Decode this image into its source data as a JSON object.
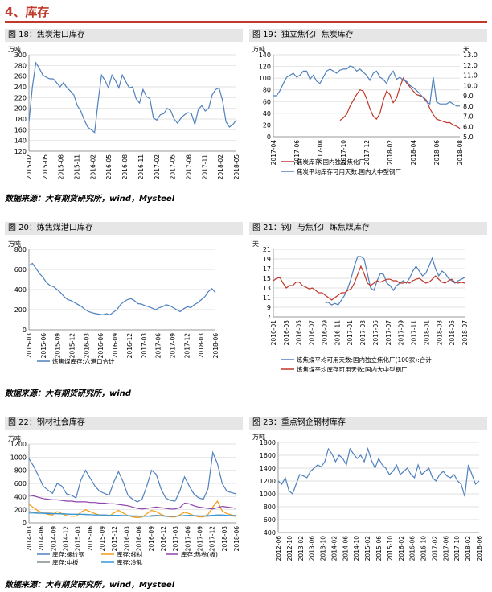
{
  "section": {
    "title": "4、库存"
  },
  "figures": [
    {
      "caption": "图 18：焦炭港口库存"
    },
    {
      "caption": "图 19：独立焦化厂焦炭库存"
    },
    {
      "caption": "图 20：炼焦煤港口库存"
    },
    {
      "caption": "图 21：钢厂与焦化厂炼焦煤库存"
    },
    {
      "caption": "图 22：钢材社会库存"
    },
    {
      "caption": "图 23：重点钢企钢材库存"
    }
  ],
  "sources": [
    "数据来源：大有期货研究所，wind，Mysteel",
    "数据来源：大有期货研究所，wind",
    "数据来源：大有期货研究所，wind，Mysteel"
  ],
  "chart_data": [
    {
      "type": "line",
      "ylabel": "万吨",
      "ylim": [
        120,
        300
      ],
      "yticks": [
        120,
        140,
        160,
        180,
        200,
        220,
        240,
        260,
        280,
        300
      ],
      "x_tick_labels": [
        "2015-02",
        "2015-05",
        "2015-08",
        "2015-11",
        "2016-02",
        "2016-05",
        "2016-08",
        "2016-11",
        "2017-02",
        "2017-05",
        "2017-08",
        "2017-11",
        "2018-02",
        "2018-05"
      ],
      "grid": "horizontal",
      "series": [
        {
          "name": "",
          "color": "#4f81bd",
          "values": [
            175,
            240,
            285,
            275,
            262,
            258,
            255,
            255,
            248,
            240,
            248,
            238,
            232,
            225,
            205,
            195,
            178,
            165,
            160,
            155,
            212,
            262,
            252,
            238,
            262,
            252,
            238,
            262,
            250,
            238,
            240,
            218,
            210,
            235,
            222,
            218,
            182,
            178,
            188,
            190,
            200,
            196,
            180,
            172,
            182,
            188,
            192,
            190,
            170,
            198,
            205,
            195,
            200,
            225,
            235,
            238,
            215,
            175,
            165,
            170,
            178
          ]
        }
      ]
    },
    {
      "type": "line",
      "ylabel": "万吨",
      "ylabel_right": "天",
      "ylim": [
        0,
        140
      ],
      "yticks": [
        0,
        20,
        40,
        60,
        80,
        100,
        120,
        140
      ],
      "ylim_right": [
        5.0,
        13.0
      ],
      "yticks_right": [
        "5.0",
        "6.0",
        "7.0",
        "8.0",
        "9.0",
        "10.0",
        "11.0",
        "12.0",
        "13.0"
      ],
      "x_tick_labels": [
        "2017-04",
        "2017-06",
        "2017-08",
        "2017-10",
        "2017-12",
        "2018-02",
        "2018-04",
        "2018-06",
        "2018-08"
      ],
      "legend": [
        "焦炭库存:国内独立焦化厂",
        "焦炭平均库存可用天数:国内大中型钢厂"
      ],
      "series": [
        {
          "name": "焦炭库存:国内独立焦化厂",
          "color": "#c0392b",
          "axis": "left",
          "values": [
            null,
            null,
            null,
            null,
            null,
            null,
            null,
            null,
            null,
            null,
            null,
            null,
            null,
            null,
            null,
            null,
            null,
            null,
            null,
            null,
            28,
            32,
            38,
            52,
            62,
            72,
            80,
            78,
            65,
            48,
            35,
            30,
            40,
            62,
            78,
            72,
            58,
            66,
            85,
            100,
            92,
            85,
            78,
            72,
            70,
            68,
            62,
            48,
            38,
            30,
            28,
            26,
            24,
            24,
            20,
            18,
            14
          ]
        },
        {
          "name": "焦炭平均库存可用天数:国内大中型钢厂",
          "color": "#4f81bd",
          "axis": "right",
          "values": [
            9.0,
            9.0,
            9.5,
            10.2,
            10.8,
            11.0,
            11.2,
            10.8,
            11.0,
            11.4,
            11.4,
            10.6,
            11.0,
            10.4,
            10.2,
            10.8,
            11.4,
            11.6,
            11.4,
            11.2,
            11.5,
            11.6,
            11.6,
            11.9,
            11.8,
            11.4,
            11.6,
            11.3,
            11.0,
            10.5,
            11.2,
            11.4,
            10.8,
            10.6,
            10.2,
            11.0,
            11.4,
            10.6,
            10.8,
            10.5,
            10.4,
            10.0,
            9.8,
            9.5,
            9.2,
            8.8,
            8.4,
            8.2,
            10.8,
            8.4,
            8.2,
            8.2,
            8.2,
            8.4,
            8.2,
            8.0,
            8.0
          ]
        }
      ]
    },
    {
      "type": "line",
      "ylabel": "万吨",
      "ylim": [
        0,
        800
      ],
      "yticks": [
        0,
        200,
        400,
        600,
        800
      ],
      "x_tick_labels": [
        "2015-03",
        "2015-06",
        "2015-09",
        "2015-12",
        "2016-03",
        "2016-06",
        "2016-09",
        "2016-12",
        "2017-03",
        "2017-06",
        "2017-09",
        "2017-12",
        "2018-03",
        "2018-06"
      ],
      "legend": [
        "炼焦煤库存:六港口合计"
      ],
      "series": [
        {
          "name": "炼焦煤库存:六港口合计",
          "color": "#4f81bd",
          "values": [
            640,
            660,
            610,
            560,
            520,
            470,
            440,
            430,
            400,
            370,
            330,
            300,
            290,
            270,
            250,
            230,
            200,
            180,
            170,
            160,
            155,
            150,
            160,
            150,
            175,
            200,
            250,
            280,
            300,
            310,
            290,
            260,
            255,
            240,
            230,
            215,
            200,
            220,
            230,
            250,
            240,
            220,
            200,
            180,
            210,
            230,
            220,
            250,
            270,
            300,
            330,
            380,
            410,
            370
          ]
        }
      ]
    },
    {
      "type": "line",
      "ylabel": "天",
      "ylim": [
        7,
        21
      ],
      "yticks": [
        7,
        9,
        11,
        13,
        15,
        17,
        19,
        21
      ],
      "x_tick_labels": [
        "2016-01",
        "2016-03",
        "2016-05",
        "2016-07",
        "2016-09",
        "2016-11",
        "2017-01",
        "2017-03",
        "2017-05",
        "2017-07",
        "2017-09",
        "2017-11",
        "2018-01",
        "2018-03",
        "2018-05",
        "2018-07"
      ],
      "legend": [
        "炼焦煤平均可用天数:国内独立焦化厂(100家):合计",
        "炼焦煤平均库存可用天数:国内大中型钢厂"
      ],
      "series": [
        {
          "name": "炼焦煤平均可用天数:国内独立焦化厂(100家):合计",
          "color": "#4f81bd",
          "values": [
            null,
            null,
            null,
            null,
            null,
            null,
            null,
            null,
            null,
            null,
            null,
            null,
            null,
            null,
            null,
            null,
            10.0,
            10.0,
            9.5,
            9.8,
            9.5,
            10.5,
            11.5,
            13.0,
            15.0,
            17.5,
            19.5,
            19.5,
            19.0,
            16.0,
            13.0,
            12.5,
            14.5,
            16.0,
            15.8,
            14.0,
            13.5,
            12.5,
            13.5,
            14.0,
            14.5,
            14.0,
            15.0,
            16.5,
            17.5,
            16.5,
            15.5,
            16.0,
            17.5,
            19.2,
            17.0,
            15.5,
            16.5,
            16.0,
            15.0,
            14.5,
            14.0,
            14.5,
            14.8,
            15.2
          ]
        },
        {
          "name": "炼焦煤平均库存可用天数:国内大中型钢厂",
          "color": "#c0392b",
          "values": [
            14.5,
            15.0,
            15.2,
            14.0,
            13.0,
            13.5,
            13.5,
            14.2,
            14.2,
            13.5,
            13.2,
            12.8,
            13.0,
            12.5,
            12.0,
            12.0,
            11.5,
            11.0,
            10.5,
            11.0,
            11.5,
            12.0,
            12.0,
            12.5,
            12.8,
            14.0,
            15.8,
            17.5,
            16.0,
            14.0,
            13.5,
            14.0,
            14.5,
            14.2,
            14.5,
            14.8,
            14.8,
            14.5,
            14.5,
            14.0,
            14.0,
            14.2,
            14.0,
            14.5,
            14.8,
            15.0,
            14.5,
            14.0,
            14.2,
            14.8,
            15.5,
            14.8,
            14.2,
            14.0,
            14.5,
            14.8,
            14.2,
            14.0,
            14.2,
            14.0
          ]
        }
      ]
    },
    {
      "type": "line",
      "ylabel": "万吨",
      "ylim": [
        0,
        1200
      ],
      "yticks": [
        0,
        200,
        400,
        600,
        800,
        1000,
        1200
      ],
      "x_tick_labels": [
        "2014-03",
        "2014-06",
        "2014-09",
        "2014-12",
        "2015-03",
        "2015-06",
        "2015-09",
        "2015-12",
        "2016-03",
        "2016-06",
        "2016-09",
        "2016-12",
        "2017-03",
        "2017-06",
        "2017-09",
        "2017-12",
        "2018-03",
        "2018-06"
      ],
      "legend": [
        "库存:螺纹钢",
        "库存:线材",
        "库存:热卷(板)",
        "库存:中板",
        "库存:冷轧"
      ],
      "series": [
        {
          "name": "库存:螺纹钢",
          "color": "#4f81bd",
          "values": [
            980,
            860,
            720,
            560,
            500,
            450,
            600,
            560,
            440,
            420,
            380,
            650,
            800,
            680,
            560,
            480,
            450,
            420,
            620,
            780,
            620,
            420,
            360,
            320,
            360,
            560,
            800,
            740,
            520,
            380,
            340,
            330,
            480,
            700,
            560,
            440,
            380,
            360,
            520,
            1070,
            900,
            600,
            480,
            460,
            440
          ]
        },
        {
          "name": "库存:线材",
          "color": "#f39c12",
          "values": [
            280,
            230,
            180,
            150,
            130,
            120,
            170,
            140,
            110,
            100,
            100,
            160,
            200,
            170,
            140,
            120,
            110,
            100,
            150,
            190,
            150,
            110,
            90,
            80,
            90,
            140,
            190,
            170,
            130,
            100,
            90,
            90,
            120,
            160,
            140,
            110,
            90,
            90,
            130,
            240,
            330,
            180,
            140,
            120,
            110
          ]
        },
        {
          "name": "库存:热卷(板)",
          "color": "#8e44ad",
          "values": [
            420,
            410,
            390,
            370,
            360,
            350,
            350,
            340,
            330,
            330,
            320,
            320,
            320,
            310,
            310,
            300,
            300,
            290,
            290,
            280,
            270,
            260,
            240,
            220,
            210,
            220,
            230,
            240,
            230,
            220,
            210,
            210,
            230,
            300,
            290,
            260,
            240,
            230,
            220,
            210,
            230,
            250,
            240,
            230,
            220
          ]
        },
        {
          "name": "库存:中板",
          "color": "#7f8c8d",
          "values": [
            170,
            160,
            150,
            150,
            150,
            145,
            140,
            140,
            135,
            130,
            130,
            130,
            130,
            125,
            120,
            120,
            120,
            115,
            115,
            110,
            110,
            105,
            100,
            100,
            100,
            100,
            110,
            115,
            110,
            105,
            100,
            100,
            105,
            110,
            115,
            110,
            105,
            100,
            100,
            110,
            120,
            115,
            110,
            105,
            100
          ]
        },
        {
          "name": "库存:冷轧",
          "color": "#3498db",
          "values": [
            150,
            150,
            145,
            145,
            140,
            140,
            140,
            135,
            135,
            130,
            130,
            130,
            125,
            125,
            120,
            120,
            120,
            115,
            115,
            115,
            110,
            110,
            105,
            105,
            100,
            100,
            100,
            105,
            105,
            100,
            100,
            100,
            105,
            110,
            110,
            110,
            105,
            105,
            110,
            115,
            120,
            120,
            115,
            110,
            110
          ]
        }
      ]
    },
    {
      "type": "line",
      "ylabel": "万吨",
      "ylim": [
        400,
        1800
      ],
      "yticks": [
        400,
        600,
        800,
        1000,
        1200,
        1400,
        1600,
        1800
      ],
      "x_tick_labels": [
        "2012-06",
        "2012-10",
        "2013-02",
        "2013-06",
        "2013-10",
        "2014-02",
        "2014-06",
        "2014-10",
        "2015-02",
        "2015-06",
        "2015-10",
        "2016-02",
        "2016-06",
        "2016-10",
        "2017-02",
        "2017-06",
        "2017-10",
        "2018-02",
        "2018-06"
      ],
      "series": [
        {
          "name": "",
          "color": "#4f81bd",
          "values": [
            1200,
            1150,
            1250,
            1050,
            1000,
            1150,
            1300,
            1280,
            1250,
            1350,
            1400,
            1450,
            1420,
            1500,
            1700,
            1620,
            1500,
            1600,
            1550,
            1450,
            1700,
            1620,
            1550,
            1600,
            1500,
            1700,
            1520,
            1400,
            1550,
            1450,
            1400,
            1300,
            1350,
            1450,
            1300,
            1350,
            1400,
            1300,
            1250,
            1450,
            1300,
            1350,
            1400,
            1250,
            1200,
            1300,
            1350,
            1280,
            1250,
            1300,
            1200,
            1150,
            960,
            1450,
            1300,
            1150,
            1200
          ]
        }
      ]
    }
  ]
}
